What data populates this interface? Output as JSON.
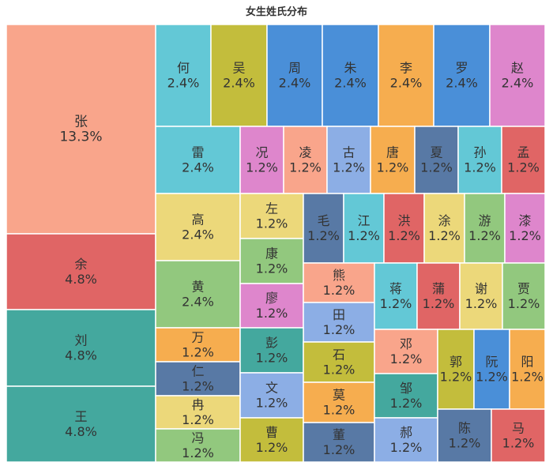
{
  "chart_data": {
    "type": "treemap",
    "title": "女生姓氏分布",
    "items": [
      {
        "name": "张",
        "label": "13.3%",
        "value": 13.3,
        "color": "#f9a58b"
      },
      {
        "name": "余",
        "label": "4.8%",
        "value": 4.8,
        "color": "#e06565"
      },
      {
        "name": "刘",
        "label": "4.8%",
        "value": 4.8,
        "color": "#44a89e"
      },
      {
        "name": "王",
        "label": "4.8%",
        "value": 4.8,
        "color": "#44a89e"
      },
      {
        "name": "何",
        "label": "2.4%",
        "value": 2.4,
        "color": "#63c8d6"
      },
      {
        "name": "吴",
        "label": "2.4%",
        "value": 2.4,
        "color": "#c3bd3c"
      },
      {
        "name": "周",
        "label": "2.4%",
        "value": 2.4,
        "color": "#4a8fd8"
      },
      {
        "name": "朱",
        "label": "2.4%",
        "value": 2.4,
        "color": "#4a8fd8"
      },
      {
        "name": "李",
        "label": "2.4%",
        "value": 2.4,
        "color": "#f6ad4f"
      },
      {
        "name": "罗",
        "label": "2.4%",
        "value": 2.4,
        "color": "#4a8fd8"
      },
      {
        "name": "赵",
        "label": "2.4%",
        "value": 2.4,
        "color": "#de86cc"
      },
      {
        "name": "雷",
        "label": "2.4%",
        "value": 2.4,
        "color": "#63c8d6"
      },
      {
        "name": "况",
        "label": "1.2%",
        "value": 1.2,
        "color": "#de86cc"
      },
      {
        "name": "凌",
        "label": "1.2%",
        "value": 1.2,
        "color": "#f9a58b"
      },
      {
        "name": "古",
        "label": "1.2%",
        "value": 1.2,
        "color": "#8caee5"
      },
      {
        "name": "唐",
        "label": "1.2%",
        "value": 1.2,
        "color": "#f6ad4f"
      },
      {
        "name": "夏",
        "label": "1.2%",
        "value": 1.2,
        "color": "#5879a5"
      },
      {
        "name": "孙",
        "label": "1.2%",
        "value": 1.2,
        "color": "#63c8d6"
      },
      {
        "name": "孟",
        "label": "1.2%",
        "value": 1.2,
        "color": "#e06565"
      },
      {
        "name": "高",
        "label": "2.4%",
        "value": 2.4,
        "color": "#ecd87a"
      },
      {
        "name": "黄",
        "label": "2.4%",
        "value": 2.4,
        "color": "#92c87e"
      },
      {
        "name": "左",
        "label": "1.2%",
        "value": 1.2,
        "color": "#ecd87a"
      },
      {
        "name": "康",
        "label": "1.2%",
        "value": 1.2,
        "color": "#92c87e"
      },
      {
        "name": "廖",
        "label": "1.2%",
        "value": 1.2,
        "color": "#de86cc"
      },
      {
        "name": "毛",
        "label": "1.2%",
        "value": 1.2,
        "color": "#5879a5"
      },
      {
        "name": "江",
        "label": "1.2%",
        "value": 1.2,
        "color": "#63c8d6"
      },
      {
        "name": "洪",
        "label": "1.2%",
        "value": 1.2,
        "color": "#e06565"
      },
      {
        "name": "涂",
        "label": "1.2%",
        "value": 1.2,
        "color": "#ecd87a"
      },
      {
        "name": "游",
        "label": "1.2%",
        "value": 1.2,
        "color": "#92c87e"
      },
      {
        "name": "漆",
        "label": "1.2%",
        "value": 1.2,
        "color": "#de86cc"
      },
      {
        "name": "熊",
        "label": "1.2%",
        "value": 1.2,
        "color": "#f9a58b"
      },
      {
        "name": "田",
        "label": "1.2%",
        "value": 1.2,
        "color": "#8caee5"
      },
      {
        "name": "蒋",
        "label": "1.2%",
        "value": 1.2,
        "color": "#63c8d6"
      },
      {
        "name": "蒲",
        "label": "1.2%",
        "value": 1.2,
        "color": "#e06565"
      },
      {
        "name": "谢",
        "label": "1.2%",
        "value": 1.2,
        "color": "#ecd87a"
      },
      {
        "name": "贾",
        "label": "1.2%",
        "value": 1.2,
        "color": "#92c87e"
      },
      {
        "name": "万",
        "label": "1.2%",
        "value": 1.2,
        "color": "#f6ad4f"
      },
      {
        "name": "仁",
        "label": "1.2%",
        "value": 1.2,
        "color": "#5879a5"
      },
      {
        "name": "冉",
        "label": "1.2%",
        "value": 1.2,
        "color": "#ecd87a"
      },
      {
        "name": "冯",
        "label": "1.2%",
        "value": 1.2,
        "color": "#92c87e"
      },
      {
        "name": "彭",
        "label": "1.2%",
        "value": 1.2,
        "color": "#44a89e"
      },
      {
        "name": "文",
        "label": "1.2%",
        "value": 1.2,
        "color": "#8caee5"
      },
      {
        "name": "曹",
        "label": "1.2%",
        "value": 1.2,
        "color": "#c3bd3c"
      },
      {
        "name": "石",
        "label": "1.2%",
        "value": 1.2,
        "color": "#c3bd3c"
      },
      {
        "name": "莫",
        "label": "1.2%",
        "value": 1.2,
        "color": "#f6ad4f"
      },
      {
        "name": "董",
        "label": "1.2%",
        "value": 1.2,
        "color": "#5879a5"
      },
      {
        "name": "邓",
        "label": "1.2%",
        "value": 1.2,
        "color": "#f9a58b"
      },
      {
        "name": "邹",
        "label": "1.2%",
        "value": 1.2,
        "color": "#44a89e"
      },
      {
        "name": "郝",
        "label": "1.2%",
        "value": 1.2,
        "color": "#8caee5"
      },
      {
        "name": "郭",
        "label": "1.2%",
        "value": 1.2,
        "color": "#c3bd3c"
      },
      {
        "name": "阮",
        "label": "1.2%",
        "value": 1.2,
        "color": "#4a8fd8"
      },
      {
        "name": "阳",
        "label": "1.2%",
        "value": 1.2,
        "color": "#f6ad4f"
      },
      {
        "name": "陈",
        "label": "1.2%",
        "value": 1.2,
        "color": "#5879a5"
      },
      {
        "name": "马",
        "label": "1.2%",
        "value": 1.2,
        "color": "#e06565"
      }
    ]
  }
}
